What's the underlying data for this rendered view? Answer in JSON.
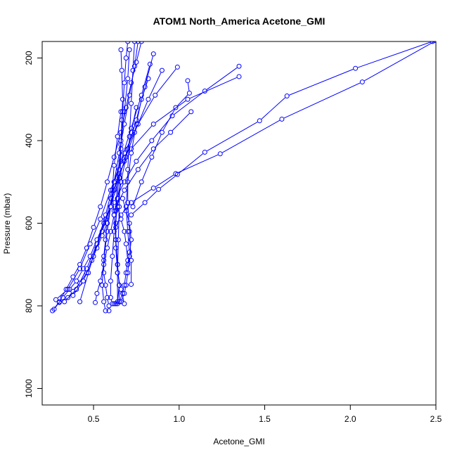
{
  "chart_data": {
    "type": "line",
    "title": "ATOM1 North_America Acetone_GMI",
    "xlabel": "Acetone_GMI",
    "ylabel": "Pressure (mbar)",
    "xlim": [
      0.2,
      2.5
    ],
    "ylim": [
      1040,
      160
    ],
    "y_reversed": true,
    "x_ticks": [
      0.5,
      1.0,
      1.5,
      2.0,
      2.5
    ],
    "x_tick_labels": [
      "0.5",
      "1.0",
      "1.5",
      "2.0",
      "2.5"
    ],
    "y_ticks": [
      200,
      400,
      600,
      800,
      1000
    ],
    "y_tick_labels": [
      "200",
      "400",
      "600",
      "800",
      "1000"
    ],
    "grid": false,
    "legend": "none",
    "line_color": "#0000ff",
    "marker": "open-circle",
    "series": [
      {
        "x": [
          2.48,
          2.03,
          1.63,
          1.47,
          1.15,
          0.99,
          0.88,
          0.8,
          0.72
        ],
        "y": [
          160,
          225,
          292,
          352,
          428,
          482,
          518,
          550,
          580
        ]
      },
      {
        "x": [
          2.5,
          2.07,
          1.6,
          1.24,
          0.98,
          0.85,
          0.72,
          0.66,
          0.63
        ],
        "y": [
          158,
          258,
          348,
          432,
          480,
          515,
          550,
          580,
          610
        ]
      },
      {
        "x": [
          1.35,
          1.15,
          0.96,
          0.84,
          0.75,
          0.68,
          0.62
        ],
        "y": [
          220,
          280,
          340,
          400,
          450,
          500,
          550
        ]
      },
      {
        "x": [
          1.35,
          1.05,
          0.85,
          0.72,
          0.65,
          0.6
        ],
        "y": [
          245,
          300,
          360,
          420,
          480,
          540
        ]
      },
      {
        "x": [
          1.05,
          1.06,
          0.98,
          0.9,
          0.84,
          0.78,
          0.73
        ],
        "y": [
          255,
          285,
          320,
          380,
          440,
          500,
          560
        ]
      },
      {
        "x": [
          1.07,
          0.95,
          0.85,
          0.76,
          0.68,
          0.62
        ],
        "y": [
          330,
          380,
          420,
          470,
          520,
          570
        ]
      },
      {
        "x": [
          0.99,
          0.86,
          0.76,
          0.68,
          0.62,
          0.57,
          0.52,
          0.47,
          0.42
        ],
        "y": [
          222,
          290,
          360,
          430,
          500,
          580,
          650,
          720,
          790
        ]
      },
      {
        "x": [
          0.9,
          0.82,
          0.74,
          0.68,
          0.62,
          0.57,
          0.52,
          0.46,
          0.4,
          0.33
        ],
        "y": [
          230,
          300,
          380,
          450,
          520,
          590,
          650,
          710,
          760,
          790
        ]
      },
      {
        "x": [
          0.85,
          0.8,
          0.75,
          0.7,
          0.65,
          0.6,
          0.55,
          0.5,
          0.44,
          0.38
        ],
        "y": [
          190,
          270,
          350,
          420,
          490,
          560,
          620,
          680,
          740,
          775
        ]
      },
      {
        "x": [
          0.83,
          0.78,
          0.72,
          0.66,
          0.6,
          0.54,
          0.48,
          0.42,
          0.35,
          0.28
        ],
        "y": [
          215,
          290,
          370,
          450,
          520,
          590,
          650,
          710,
          760,
          785
        ]
      },
      {
        "x": [
          0.78,
          0.75,
          0.72,
          0.69,
          0.66,
          0.62,
          0.58,
          0.54,
          0.5,
          0.46,
          0.42,
          0.38,
          0.34,
          0.3,
          0.26
        ],
        "y": [
          160,
          210,
          260,
          320,
          380,
          440,
          500,
          560,
          610,
          660,
          700,
          730,
          760,
          790,
          812
        ]
      },
      {
        "x": [
          0.76,
          0.74,
          0.71,
          0.68,
          0.65,
          0.62,
          0.6,
          0.58,
          0.56,
          0.55,
          0.56,
          0.57
        ],
        "y": [
          160,
          220,
          290,
          360,
          430,
          500,
          560,
          620,
          690,
          750,
          790,
          812
        ]
      },
      {
        "x": [
          0.7,
          0.69,
          0.68,
          0.67,
          0.66,
          0.65,
          0.64,
          0.63,
          0.63,
          0.64,
          0.66,
          0.68
        ],
        "y": [
          160,
          200,
          260,
          330,
          400,
          470,
          540,
          600,
          660,
          720,
          760,
          795
        ]
      },
      {
        "x": [
          0.66,
          0.665,
          0.67,
          0.665,
          0.66,
          0.655,
          0.65,
          0.645,
          0.64,
          0.64
        ],
        "y": [
          180,
          230,
          300,
          350,
          420,
          490,
          560,
          640,
          720,
          795
        ]
      },
      {
        "x": [
          0.74,
          0.73,
          0.72,
          0.71,
          0.7,
          0.7,
          0.71,
          0.72,
          0.72
        ],
        "y": [
          160,
          230,
          310,
          390,
          470,
          550,
          620,
          690,
          748
        ]
      },
      {
        "x": [
          0.82,
          0.78,
          0.75,
          0.72,
          0.7,
          0.69,
          0.7,
          0.71,
          0.7
        ],
        "y": [
          250,
          300,
          360,
          430,
          500,
          560,
          620,
          670,
          700
        ]
      },
      {
        "x": [
          0.62,
          0.6,
          0.58,
          0.57,
          0.56,
          0.56,
          0.57,
          0.58,
          0.59,
          0.59
        ],
        "y": [
          520,
          560,
          600,
          640,
          680,
          720,
          750,
          780,
          800,
          812
        ]
      },
      {
        "x": [
          0.66,
          0.64,
          0.62,
          0.6,
          0.58,
          0.56,
          0.54,
          0.52,
          0.51
        ],
        "y": [
          500,
          540,
          580,
          620,
          660,
          700,
          740,
          770,
          792
        ]
      },
      {
        "x": [
          0.6,
          0.56,
          0.52,
          0.48,
          0.44,
          0.4,
          0.36,
          0.32,
          0.27
        ],
        "y": [
          560,
          600,
          640,
          680,
          710,
          740,
          760,
          780,
          808
        ]
      },
      {
        "x": [
          0.58,
          0.55,
          0.52,
          0.49,
          0.46,
          0.42,
          0.38,
          0.35,
          0.3
        ],
        "y": [
          600,
          630,
          660,
          690,
          720,
          745,
          765,
          780,
          792
        ]
      },
      {
        "x": [
          0.67,
          0.69,
          0.71,
          0.72,
          0.71,
          0.7,
          0.69,
          0.68,
          0.66,
          0.63
        ],
        "y": [
          540,
          570,
          600,
          640,
          680,
          720,
          750,
          770,
          790,
          795
        ]
      },
      {
        "x": [
          0.64,
          0.66,
          0.68,
          0.69,
          0.7,
          0.69,
          0.68,
          0.67,
          0.65,
          0.62
        ],
        "y": [
          560,
          590,
          620,
          650,
          690,
          720,
          750,
          770,
          790,
          795
        ]
      },
      {
        "x": [
          0.75,
          0.72,
          0.69,
          0.66,
          0.64,
          0.62,
          0.61,
          0.6,
          0.6,
          0.61
        ],
        "y": [
          320,
          380,
          440,
          500,
          560,
          620,
          680,
          740,
          780,
          795
        ]
      },
      {
        "x": [
          0.66,
          0.64,
          0.62,
          0.61,
          0.62,
          0.63,
          0.64,
          0.65,
          0.64
        ],
        "y": [
          330,
          390,
          460,
          520,
          580,
          640,
          700,
          750,
          790
        ]
      },
      {
        "x": [
          0.71,
          0.7,
          0.68,
          0.66,
          0.64,
          0.63,
          0.63,
          0.64,
          0.65,
          0.65
        ],
        "y": [
          180,
          250,
          330,
          410,
          490,
          570,
          640,
          700,
          750,
          790
        ]
      }
    ]
  }
}
